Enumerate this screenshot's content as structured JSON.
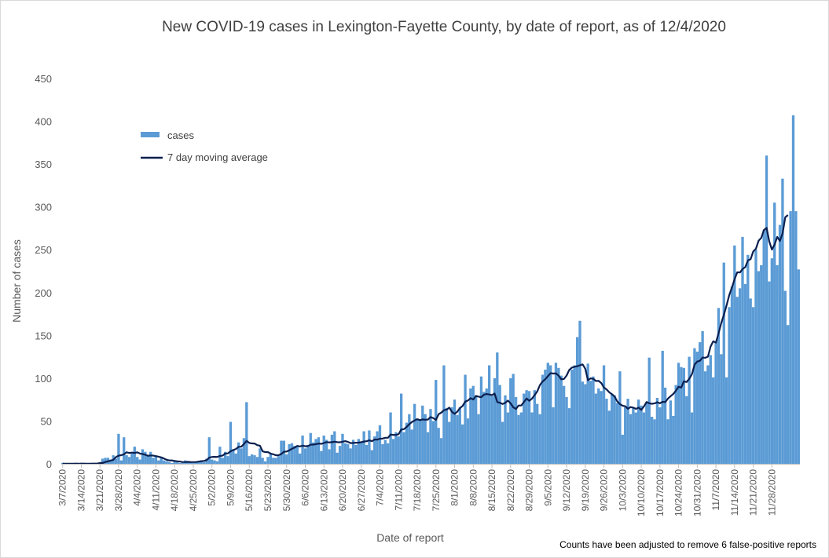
{
  "chart_data": {
    "type": "bar",
    "title": "New COVID-19 cases in Lexington-Fayette County, by date of report, as of 12/4/2020",
    "xlabel": "Date of report",
    "ylabel": "Number of cases",
    "ylim": [
      0,
      450
    ],
    "yticks": [
      0,
      50,
      100,
      150,
      200,
      250,
      300,
      350,
      400,
      450
    ],
    "x_start": "2020-03-07",
    "xtick_labels": [
      "3/7/2020",
      "3/14/2020",
      "3/21/2020",
      "3/28/2020",
      "4/4/2020",
      "4/11/2020",
      "4/18/2020",
      "4/25/2020",
      "5/2/2020",
      "5/9/2020",
      "5/16/2020",
      "5/23/2020",
      "5/30/2020",
      "6/6/2020",
      "6/13/2020",
      "6/20/2020",
      "6/27/2020",
      "7/4/2020",
      "7/11/2020",
      "7/18/2020",
      "7/25/2020",
      "8/1/2020",
      "8/8/2020",
      "8/15/2020",
      "8/22/2020",
      "8/29/2020",
      "9/5/2020",
      "9/12/2020",
      "9/19/2020",
      "9/26/2020",
      "10/3/2020",
      "10/10/2020",
      "10/17/2020",
      "10/24/2020",
      "10/31/2020",
      "11/7/2020",
      "11/14/2020",
      "11/21/2020",
      "11/28/2020"
    ],
    "legend": {
      "position": "top-left",
      "entries": [
        "cases",
        "7 day moving average"
      ]
    },
    "grid": false,
    "colors": {
      "cases": "#5b9bd5",
      "average": "#0b1f4f"
    },
    "series": [
      {
        "name": "cases",
        "type": "bar",
        "values": [
          1,
          0,
          0,
          0,
          0,
          1,
          0,
          0,
          0,
          0,
          0,
          0,
          1,
          0,
          1,
          6,
          7,
          7,
          5,
          10,
          6,
          35,
          4,
          31,
          10,
          8,
          12,
          20,
          8,
          5,
          17,
          14,
          10,
          14,
          7,
          9,
          4,
          8,
          4,
          3,
          2,
          1,
          3,
          2,
          1,
          1,
          4,
          3,
          2,
          1,
          2,
          3,
          4,
          2,
          6,
          31,
          5,
          4,
          3,
          20,
          7,
          14,
          9,
          49,
          17,
          12,
          25,
          18,
          30,
          72,
          9,
          11,
          10,
          8,
          18,
          7,
          3,
          8,
          12,
          7,
          7,
          9,
          27,
          27,
          11,
          23,
          24,
          21,
          20,
          12,
          33,
          18,
          22,
          36,
          25,
          29,
          31,
          15,
          33,
          28,
          17,
          34,
          38,
          13,
          21,
          35,
          24,
          23,
          18,
          28,
          22,
          29,
          25,
          38,
          22,
          39,
          16,
          32,
          38,
          45,
          23,
          28,
          24,
          60,
          29,
          37,
          32,
          82,
          37,
          48,
          58,
          40,
          70,
          53,
          51,
          68,
          58,
          37,
          64,
          50,
          98,
          42,
          30,
          115,
          65,
          49,
          66,
          75,
          57,
          66,
          46,
          104,
          53,
          88,
          91,
          78,
          58,
          102,
          84,
          88,
          115,
          79,
          100,
          130,
          92,
          49,
          80,
          60,
          100,
          105,
          78,
          57,
          60,
          82,
          86,
          85,
          60,
          86,
          70,
          58,
          104,
          110,
          118,
          115,
          66,
          118,
          112,
          103,
          91,
          78,
          65,
          110,
          115,
          148,
          167,
          96,
          93,
          117,
          97,
          102,
          82,
          88,
          85,
          115,
          76,
          62,
          82,
          80,
          71,
          108,
          34,
          66,
          76,
          58,
          66,
          60,
          75,
          68,
          60,
          72,
          124,
          55,
          52,
          77,
          66,
          132,
          89,
          52,
          74,
          56,
          92,
          118,
          113,
          112,
          79,
          125,
          60,
          135,
          131,
          142,
          155,
          108,
          115,
          127,
          101,
          142,
          182,
          128,
          235,
          101,
          183,
          207,
          255,
          195,
          205,
          265,
          210,
          244,
          193,
          183,
          250,
          225,
          232,
          273,
          360,
          213,
          240,
          305,
          232,
          279,
          333,
          202,
          162,
          295,
          407,
          295,
          227
        ]
      },
      {
        "name": "7 day moving average",
        "type": "line",
        "values": [
          0.2,
          0.1,
          0.1,
          0.1,
          0.1,
          0.3,
          0.1,
          0.2,
          0.3,
          0.1,
          0.1,
          0.3,
          0.3,
          0.3,
          1.0,
          1.0,
          2.1,
          2.9,
          3.7,
          4.6,
          7.9,
          9.6,
          10.1,
          11.1,
          13.5,
          12.7,
          13.1,
          12.7,
          13.4,
          12.0,
          11.4,
          10.6,
          9.4,
          9.8,
          9.6,
          9.0,
          8.3,
          7.5,
          6.2,
          4.7,
          4.0,
          3.9,
          3.4,
          2.9,
          2.7,
          2.0,
          2.1,
          2.3,
          2.1,
          2.0,
          2.1,
          2.6,
          3.1,
          3.4,
          4.3,
          7.3,
          8.0,
          8.1,
          8.0,
          9.2,
          9.6,
          12.1,
          12.2,
          14.7,
          16.1,
          17.3,
          19.9,
          20.0,
          23.1,
          26.8,
          24.4,
          23.8,
          23.7,
          21.8,
          21.1,
          14.6,
          13.7,
          13.6,
          12.0,
          11.1,
          10.0,
          10.1,
          11.4,
          14.1,
          14.4,
          15.7,
          17.6,
          19.0,
          20.9,
          20.3,
          21.2,
          20.5,
          20.7,
          22.4,
          22.4,
          23.0,
          23.7,
          23.3,
          24.3,
          25.4,
          25.0,
          25.3,
          25.8,
          25.3,
          25.1,
          25.8,
          26.5,
          25.6,
          24.2,
          24.4,
          24.6,
          24.7,
          25.3,
          26.0,
          26.4,
          27.5,
          26.4,
          28.4,
          28.3,
          29.3,
          29.5,
          30.4,
          30.4,
          34.2,
          33.8,
          33.7,
          34.7,
          40.0,
          40.5,
          43.1,
          46.2,
          48.9,
          50.6,
          52.1,
          51.0,
          51.8,
          51.5,
          51.7,
          54.6,
          53.4,
          51.3,
          57.9,
          59.8,
          62.6,
          63.3,
          65.6,
          60.7,
          58.3,
          60.9,
          65.1,
          67.6,
          72.7,
          73.9,
          76.7,
          75.1,
          79.4,
          78.4,
          77.8,
          80.7,
          81.5,
          80.9,
          80.2,
          82.1,
          72.1,
          71.3,
          69.9,
          71.2,
          73.9,
          70.6,
          66.0,
          64.1,
          68.1,
          68.1,
          72.2,
          76.3,
          73.6,
          76.1,
          80.2,
          84.6,
          92.0,
          96.1,
          98.8,
          102.4,
          105.9,
          105.4,
          105.6,
          103.0,
          98.7,
          99.1,
          103.1,
          109.7,
          112.4,
          113.4,
          113.9,
          115.1,
          116.1,
          111.1,
          97.6,
          99.8,
          99.3,
          96.7,
          96.9,
          94.3,
          89.1,
          86.8,
          83.5,
          81.3,
          78.6,
          72.9,
          69.7,
          67.9,
          67.2,
          64.3,
          66.3,
          65.6,
          64.2,
          65.7,
          63.0,
          67.1,
          72.2,
          70.7,
          70.1,
          70.6,
          71.9,
          70.7,
          72.4,
          72.1,
          76.1,
          79.0,
          81.6,
          85.4,
          90.0,
          89.1,
          96.4,
          95.5,
          99.4,
          104.7,
          115.9,
          119.4,
          120.3,
          124.1,
          123.8,
          125.1,
          137.0,
          143.1,
          141.6,
          152.6,
          164.4,
          174.2,
          185.1,
          197.1,
          205.9,
          215.7,
          223.7,
          223.5,
          227.5,
          229.7,
          237.5,
          239.0,
          248.0,
          251.2,
          260.5,
          263.9,
          273.0,
          275.6,
          259.7,
          250.2,
          256.1,
          265.0,
          260.3,
          269.2,
          287.9,
          290.5
        ]
      }
    ],
    "footnote": "Counts have been adjusted to remove 6 false-positive reports"
  }
}
